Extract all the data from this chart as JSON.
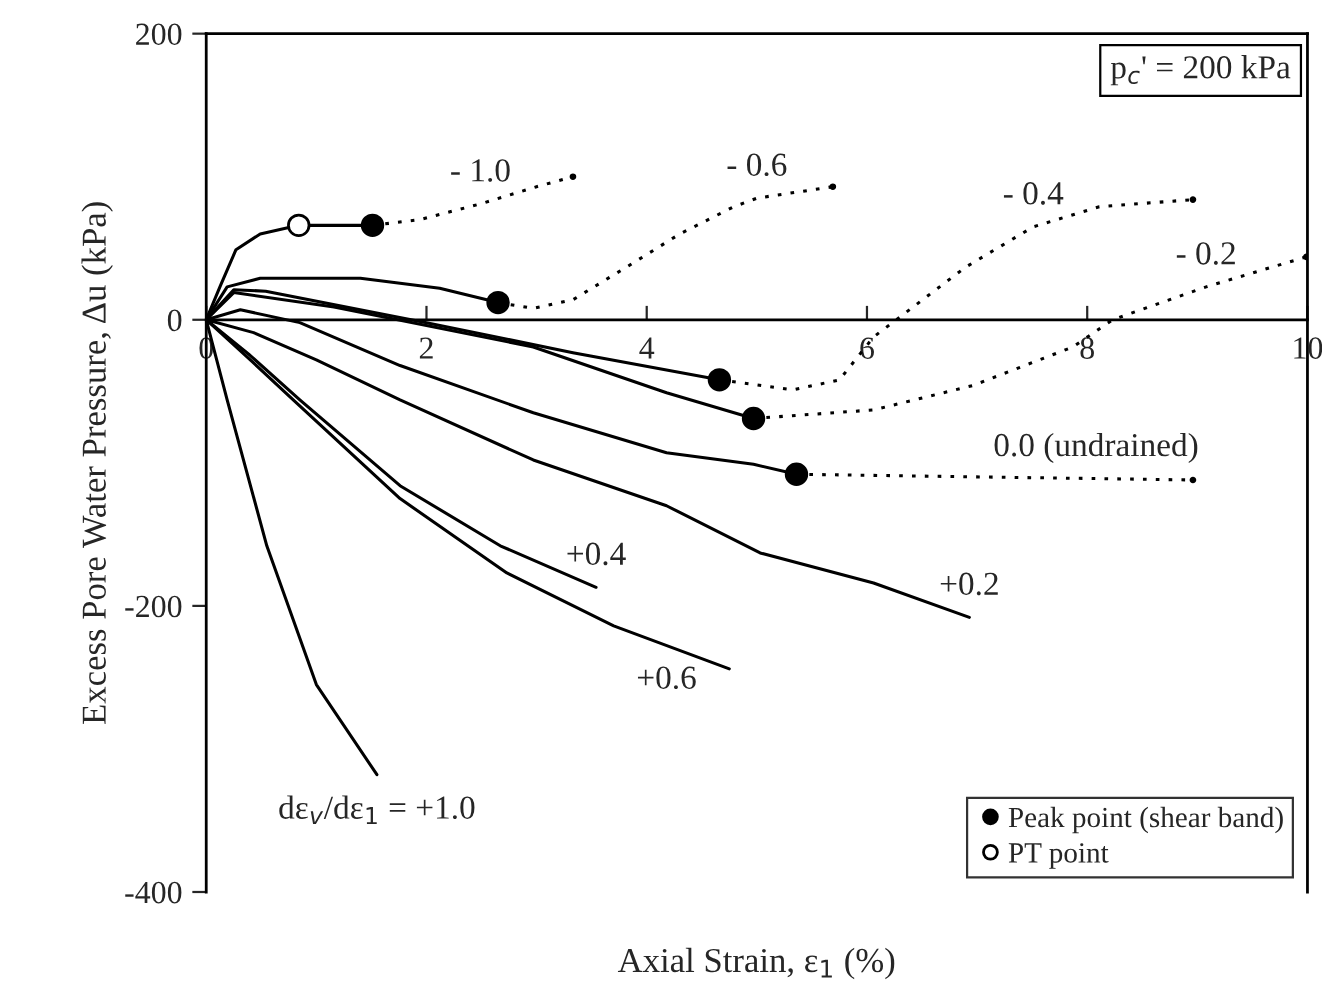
{
  "chart_data": {
    "type": "line",
    "xlabel": "Axial Strain, ε$_{1}$ (%)",
    "ylabel": "Excess Pore Water Pressure, Δu (kPa)",
    "xlim": [
      0,
      10
    ],
    "xticks": [
      0,
      2,
      4,
      6,
      8,
      10
    ],
    "ylim": [
      -400,
      200
    ],
    "yticks": [
      -400,
      -200,
      0,
      200
    ],
    "grid": false,
    "legend": "bottom right",
    "series": [
      {
        "color": "#000000",
        "line_style": "solid",
        "x": [
          0,
          0.13,
          0.27,
          0.49,
          0.84,
          1.51
        ],
        "values": [
          0,
          24,
          49,
          60,
          66,
          66
        ]
      },
      {
        "type": "line",
        "color": "#000000",
        "line_style": "dotted",
        "x": [
          1.51,
          1.94,
          2.49,
          3.0,
          3.33
        ],
        "values": [
          66,
          70,
          81,
          93,
          100
        ]
      },
      {
        "type": "line",
        "color": "#000000",
        "line_style": "solid",
        "x": [
          0,
          0.19,
          0.49,
          1.4,
          2.12,
          2.65
        ],
        "values": [
          0,
          23,
          29,
          29,
          22,
          12
        ]
      },
      {
        "type": "line",
        "color": "#000000",
        "line_style": "dotted",
        "x": [
          2.65,
          2.97,
          3.33,
          3.82,
          4.3,
          4.79,
          5.0,
          5.69
        ],
        "values": [
          12,
          8,
          14,
          37,
          60,
          79,
          85,
          93
        ]
      },
      {
        "type": "line",
        "color": "#000000",
        "line_style": "solid",
        "x": [
          0,
          0.25,
          0.54,
          2.0,
          3.33,
          4.66
        ],
        "values": [
          0,
          21,
          20,
          -2,
          -23,
          -42
        ]
      },
      {
        "type": "line",
        "color": "#000000",
        "line_style": "dotted",
        "x": [
          4.66,
          5.33,
          5.75,
          6.06,
          6.42,
          6.9,
          7.51,
          8.11,
          8.96
        ],
        "values": [
          -42,
          -49,
          -42,
          -12,
          9,
          37,
          65,
          79,
          84
        ]
      },
      {
        "type": "line",
        "color": "#000000",
        "line_style": "solid",
        "x": [
          0,
          0.25,
          1.16,
          2.97,
          4.18,
          4.97
        ],
        "values": [
          0,
          19,
          9,
          -19,
          -51,
          -69
        ]
      },
      {
        "type": "line",
        "color": "#000000",
        "line_style": "dotted",
        "x": [
          4.97,
          6.06,
          6.96,
          7.87,
          8.23,
          9.08,
          9.99
        ],
        "values": [
          -69,
          -63,
          -46,
          -19,
          0,
          23,
          44
        ]
      },
      {
        "type": "line",
        "color": "#000000",
        "line_style": "solid",
        "x": [
          0,
          0.31,
          0.85,
          1.76,
          2.97,
          4.18,
          4.97,
          5.36
        ],
        "values": [
          0,
          7,
          -2,
          -32,
          -65,
          -93,
          -101,
          -108
        ]
      },
      {
        "type": "line",
        "color": "#000000",
        "line_style": "dotted",
        "x": [
          5.36,
          8.96
        ],
        "values": [
          -108,
          -112
        ]
      },
      {
        "type": "line",
        "color": "#000000",
        "line_style": "solid",
        "x": [
          0,
          0.43,
          1.0,
          1.76,
          2.97,
          4.18,
          5.03,
          6.06,
          6.93
        ],
        "values": [
          0,
          -9,
          -28,
          -56,
          -98,
          -130,
          -163,
          -184,
          -208
        ]
      },
      {
        "type": "line",
        "color": "#000000",
        "line_style": "solid",
        "x": [
          0,
          0.4,
          0.85,
          1.76,
          2.67,
          3.54
        ],
        "values": [
          0,
          -25,
          -56,
          -116,
          -158,
          -187
        ]
      },
      {
        "type": "line",
        "color": "#000000",
        "line_style": "solid",
        "x": [
          0,
          0.4,
          0.79,
          1.76,
          2.73,
          3.7,
          4.75
        ],
        "values": [
          0,
          -28,
          -56,
          -125,
          -177,
          -214,
          -244
        ]
      },
      {
        "type": "line",
        "color": "#000000",
        "line_style": "solid",
        "x": [
          0,
          0.19,
          0.55,
          1.0,
          1.55
        ],
        "values": [
          0,
          -56,
          -158,
          -255,
          -318
        ]
      },
      {
        "type": "scatter",
        "name": "Peak point (shear band)",
        "color": "#000000",
        "marker": "circle",
        "x": [
          1.51,
          2.65,
          4.66,
          4.97,
          5.36
        ],
        "values": [
          66,
          12,
          -42,
          -69,
          -108
        ]
      },
      {
        "type": "scatter",
        "name": "PT point",
        "color": "#ffffff",
        "marker": "circle",
        "x": [
          0.84
        ],
        "values": [
          66
        ]
      }
    ],
    "annotations": [
      "p$_{c}$' = 200 kPa",
      {
        "text": "- 1.0",
        "x": 2.49,
        "y": 81
      },
      {
        "text": "- 0.6",
        "x": 5.0,
        "y": 85
      },
      {
        "text": "- 0.4",
        "x": 7.51,
        "y": 65
      },
      {
        "text": "- 0.2",
        "x": 9.08,
        "y": 23
      },
      {
        "text": "0.0 (undrained)",
        "x": 8.08,
        "y": -111
      },
      {
        "text": "+0.2",
        "x": 6.93,
        "y": -208
      },
      {
        "text": "+0.4",
        "x": 3.54,
        "y": -187
      },
      {
        "text": "+0.6",
        "x": 4.18,
        "y": -227
      },
      {
        "text": "dε$_{v}$/dε$_{1}$ = +1.0",
        "x": 1.55,
        "y": -318
      }
    ]
  }
}
